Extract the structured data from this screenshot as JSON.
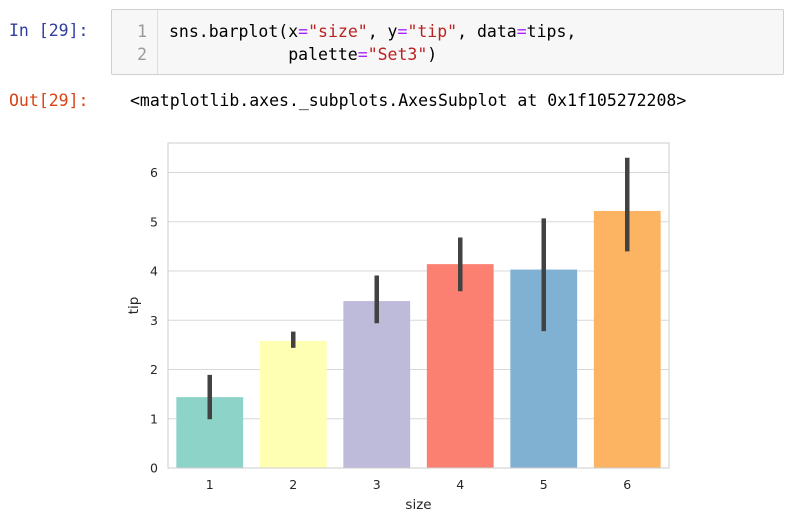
{
  "input_cell": {
    "prompt": "In [29]:",
    "lines": [
      {
        "number": "1",
        "parts": [
          {
            "text": "sns.barplot(x",
            "cls": ""
          },
          {
            "text": "=",
            "cls": "tok-op"
          },
          {
            "text": "\"size\"",
            "cls": "tok-str"
          },
          {
            "text": ", y",
            "cls": ""
          },
          {
            "text": "=",
            "cls": "tok-op"
          },
          {
            "text": "\"tip\"",
            "cls": "tok-str"
          },
          {
            "text": ", data",
            "cls": ""
          },
          {
            "text": "=",
            "cls": "tok-op"
          },
          {
            "text": "tips,",
            "cls": ""
          }
        ]
      },
      {
        "number": "2",
        "parts": [
          {
            "text": "            palette",
            "cls": ""
          },
          {
            "text": "=",
            "cls": "tok-op"
          },
          {
            "text": "\"Set3\"",
            "cls": "tok-str"
          },
          {
            "text": ")",
            "cls": ""
          }
        ]
      }
    ]
  },
  "output_cell": {
    "prompt": "Out[29]:",
    "text": "<matplotlib.axes._subplots.AxesSubplot at 0x1f105272208>"
  },
  "colors": {
    "in_prompt": "#303f9f",
    "out_prompt": "#d84315",
    "grid": "#d8d8d8",
    "axes_edge": "#cccccc",
    "error_bar": "#424242"
  },
  "chart_data": {
    "type": "bar",
    "categories": [
      "1",
      "2",
      "3",
      "4",
      "5",
      "6"
    ],
    "values": [
      1.44,
      2.58,
      3.39,
      4.14,
      4.03,
      5.22
    ],
    "ci_low": [
      0.99,
      2.44,
      2.94,
      3.59,
      2.78,
      4.4
    ],
    "ci_high": [
      1.89,
      2.77,
      3.91,
      4.68,
      5.07,
      6.3
    ],
    "colors": [
      "#8dd3c7",
      "#ffffb3",
      "#bebada",
      "#fb8072",
      "#80b1d3",
      "#fdb462"
    ],
    "xlabel": "size",
    "ylabel": "tip",
    "yticks": [
      "0",
      "1",
      "2",
      "3",
      "4",
      "5",
      "6"
    ],
    "ylim": [
      0,
      6.6
    ],
    "grid": true
  }
}
